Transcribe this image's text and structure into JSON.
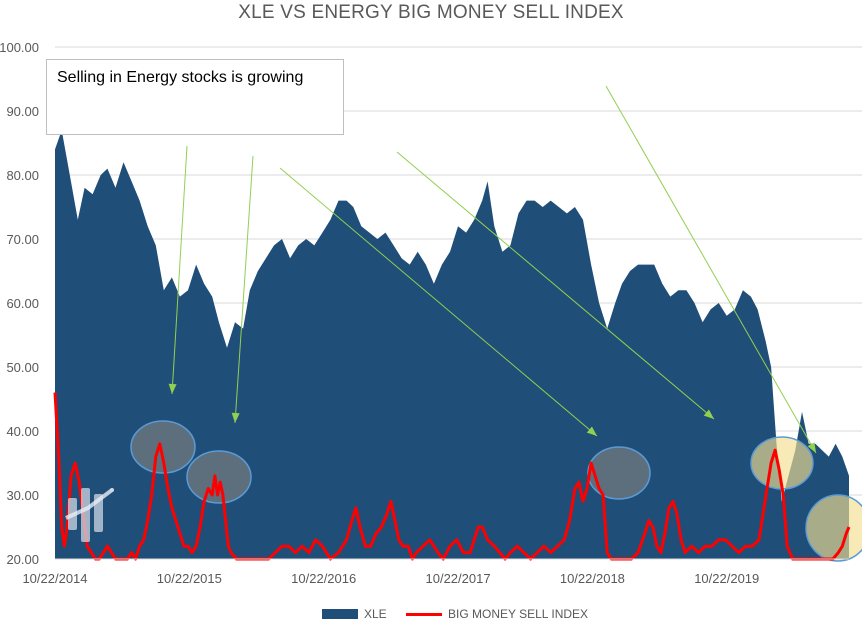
{
  "chart_data": {
    "type": "area",
    "title": "XLE VS ENERGY BIG MONEY SELL INDEX",
    "ylim": [
      20,
      100
    ],
    "yticks": [
      "20.00",
      "30.00",
      "40.00",
      "50.00",
      "60.00",
      "70.00",
      "80.00",
      "90.00",
      "100.00"
    ],
    "yvals": [
      20,
      30,
      40,
      50,
      60,
      70,
      80,
      90,
      100
    ],
    "xticks": [
      "10/22/2014",
      "10/22/2015",
      "10/22/2016",
      "10/22/2017",
      "10/22/2018",
      "10/22/2019"
    ],
    "xtick_years": [
      2014.81,
      2015.81,
      2016.81,
      2017.81,
      2018.81,
      2019.81
    ],
    "xrange": [
      2014.81,
      2020.72
    ],
    "series": [
      {
        "name": "XLE",
        "kind": "area",
        "color": "#1f4e79",
        "points": [
          [
            2014.81,
            84
          ],
          [
            2014.86,
            87
          ],
          [
            2014.92,
            80
          ],
          [
            2014.98,
            73
          ],
          [
            2015.03,
            78
          ],
          [
            2015.09,
            77
          ],
          [
            2015.15,
            80
          ],
          [
            2015.2,
            81
          ],
          [
            2015.26,
            78
          ],
          [
            2015.32,
            82
          ],
          [
            2015.38,
            79
          ],
          [
            2015.44,
            76
          ],
          [
            2015.5,
            72
          ],
          [
            2015.56,
            69
          ],
          [
            2015.62,
            62
          ],
          [
            2015.68,
            64
          ],
          [
            2015.74,
            61
          ],
          [
            2015.8,
            62
          ],
          [
            2015.86,
            66
          ],
          [
            2015.92,
            63
          ],
          [
            2015.98,
            61
          ],
          [
            2016.03,
            57
          ],
          [
            2016.09,
            53
          ],
          [
            2016.15,
            57
          ],
          [
            2016.21,
            56
          ],
          [
            2016.26,
            62
          ],
          [
            2016.32,
            65
          ],
          [
            2016.38,
            67
          ],
          [
            2016.44,
            69
          ],
          [
            2016.5,
            70
          ],
          [
            2016.56,
            67
          ],
          [
            2016.62,
            69
          ],
          [
            2016.68,
            70
          ],
          [
            2016.74,
            69
          ],
          [
            2016.8,
            71
          ],
          [
            2016.86,
            73
          ],
          [
            2016.92,
            76
          ],
          [
            2016.98,
            76
          ],
          [
            2017.03,
            75
          ],
          [
            2017.09,
            72
          ],
          [
            2017.15,
            71
          ],
          [
            2017.21,
            70
          ],
          [
            2017.27,
            71
          ],
          [
            2017.33,
            69
          ],
          [
            2017.39,
            67
          ],
          [
            2017.45,
            66
          ],
          [
            2017.51,
            68
          ],
          [
            2017.57,
            66
          ],
          [
            2017.63,
            63
          ],
          [
            2017.69,
            66
          ],
          [
            2017.75,
            68
          ],
          [
            2017.81,
            72
          ],
          [
            2017.87,
            71
          ],
          [
            2017.93,
            73
          ],
          [
            2017.99,
            76
          ],
          [
            2018.03,
            79
          ],
          [
            2018.08,
            72
          ],
          [
            2018.14,
            68
          ],
          [
            2018.2,
            69
          ],
          [
            2018.26,
            74
          ],
          [
            2018.32,
            76
          ],
          [
            2018.38,
            76
          ],
          [
            2018.44,
            75
          ],
          [
            2018.5,
            76
          ],
          [
            2018.56,
            75
          ],
          [
            2018.62,
            74
          ],
          [
            2018.68,
            75
          ],
          [
            2018.74,
            73
          ],
          [
            2018.8,
            66
          ],
          [
            2018.86,
            60
          ],
          [
            2018.92,
            56
          ],
          [
            2018.98,
            60
          ],
          [
            2019.03,
            63
          ],
          [
            2019.09,
            65
          ],
          [
            2019.15,
            66
          ],
          [
            2019.21,
            66
          ],
          [
            2019.27,
            66
          ],
          [
            2019.33,
            63
          ],
          [
            2019.39,
            61
          ],
          [
            2019.45,
            62
          ],
          [
            2019.51,
            62
          ],
          [
            2019.57,
            60
          ],
          [
            2019.63,
            57
          ],
          [
            2019.69,
            59
          ],
          [
            2019.75,
            60
          ],
          [
            2019.81,
            58
          ],
          [
            2019.87,
            59
          ],
          [
            2019.93,
            62
          ],
          [
            2019.99,
            61
          ],
          [
            2020.04,
            59
          ],
          [
            2020.1,
            54
          ],
          [
            2020.14,
            50
          ],
          [
            2020.18,
            38
          ],
          [
            2020.22,
            29
          ],
          [
            2020.27,
            33
          ],
          [
            2020.32,
            37
          ],
          [
            2020.37,
            43
          ],
          [
            2020.42,
            38
          ],
          [
            2020.47,
            38
          ],
          [
            2020.52,
            37
          ],
          [
            2020.57,
            36
          ],
          [
            2020.62,
            38
          ],
          [
            2020.67,
            36
          ],
          [
            2020.72,
            33
          ]
        ]
      },
      {
        "name": "BIG MONEY SELL INDEX",
        "kind": "line",
        "color": "#ff0000",
        "points": [
          [
            2014.81,
            46
          ],
          [
            2014.84,
            35
          ],
          [
            2014.86,
            25
          ],
          [
            2014.88,
            22
          ],
          [
            2014.9,
            25
          ],
          [
            2014.93,
            33
          ],
          [
            2014.96,
            35
          ],
          [
            2014.99,
            32
          ],
          [
            2015.02,
            27
          ],
          [
            2015.05,
            22
          ],
          [
            2015.08,
            21
          ],
          [
            2015.11,
            20
          ],
          [
            2015.14,
            20
          ],
          [
            2015.17,
            21
          ],
          [
            2015.2,
            22
          ],
          [
            2015.23,
            21
          ],
          [
            2015.26,
            20
          ],
          [
            2015.29,
            20
          ],
          [
            2015.32,
            20
          ],
          [
            2015.35,
            20
          ],
          [
            2015.38,
            21
          ],
          [
            2015.41,
            20
          ],
          [
            2015.44,
            22
          ],
          [
            2015.47,
            23
          ],
          [
            2015.5,
            26
          ],
          [
            2015.53,
            30
          ],
          [
            2015.56,
            36
          ],
          [
            2015.59,
            38
          ],
          [
            2015.62,
            35
          ],
          [
            2015.65,
            31
          ],
          [
            2015.68,
            28
          ],
          [
            2015.71,
            26
          ],
          [
            2015.74,
            24
          ],
          [
            2015.77,
            22
          ],
          [
            2015.8,
            22
          ],
          [
            2015.83,
            21
          ],
          [
            2015.86,
            22
          ],
          [
            2015.89,
            25
          ],
          [
            2015.92,
            29
          ],
          [
            2015.95,
            31
          ],
          [
            2015.98,
            30
          ],
          [
            2016.0,
            33
          ],
          [
            2016.02,
            30
          ],
          [
            2016.04,
            32
          ],
          [
            2016.06,
            30
          ],
          [
            2016.08,
            26
          ],
          [
            2016.1,
            22
          ],
          [
            2016.12,
            21
          ],
          [
            2016.16,
            20
          ],
          [
            2016.2,
            20
          ],
          [
            2016.3,
            20
          ],
          [
            2016.4,
            20
          ],
          [
            2016.45,
            21
          ],
          [
            2016.5,
            22
          ],
          [
            2016.55,
            22
          ],
          [
            2016.6,
            21
          ],
          [
            2016.65,
            22
          ],
          [
            2016.7,
            21
          ],
          [
            2016.75,
            23
          ],
          [
            2016.8,
            22
          ],
          [
            2016.86,
            20
          ],
          [
            2016.92,
            21
          ],
          [
            2016.98,
            23
          ],
          [
            2017.02,
            26
          ],
          [
            2017.05,
            28
          ],
          [
            2017.08,
            25
          ],
          [
            2017.12,
            22
          ],
          [
            2017.16,
            22
          ],
          [
            2017.2,
            24
          ],
          [
            2017.24,
            25
          ],
          [
            2017.28,
            27
          ],
          [
            2017.31,
            29
          ],
          [
            2017.34,
            26
          ],
          [
            2017.37,
            23
          ],
          [
            2017.4,
            22
          ],
          [
            2017.44,
            22
          ],
          [
            2017.47,
            20
          ],
          [
            2017.5,
            21
          ],
          [
            2017.55,
            22
          ],
          [
            2017.6,
            23
          ],
          [
            2017.63,
            22
          ],
          [
            2017.66,
            21
          ],
          [
            2017.7,
            20
          ],
          [
            2017.75,
            22
          ],
          [
            2017.8,
            23
          ],
          [
            2017.85,
            21
          ],
          [
            2017.9,
            21
          ],
          [
            2017.93,
            23
          ],
          [
            2017.96,
            25
          ],
          [
            2017.99,
            25
          ],
          [
            2018.03,
            23
          ],
          [
            2018.08,
            22
          ],
          [
            2018.12,
            21
          ],
          [
            2018.16,
            20
          ],
          [
            2018.2,
            21
          ],
          [
            2018.25,
            22
          ],
          [
            2018.3,
            21
          ],
          [
            2018.35,
            20
          ],
          [
            2018.4,
            21
          ],
          [
            2018.45,
            22
          ],
          [
            2018.5,
            21
          ],
          [
            2018.55,
            22
          ],
          [
            2018.6,
            23
          ],
          [
            2018.64,
            26
          ],
          [
            2018.68,
            31
          ],
          [
            2018.71,
            32
          ],
          [
            2018.74,
            29
          ],
          [
            2018.77,
            31
          ],
          [
            2018.8,
            35
          ],
          [
            2018.83,
            33
          ],
          [
            2018.86,
            31
          ],
          [
            2018.89,
            30
          ],
          [
            2018.92,
            21
          ],
          [
            2018.95,
            20
          ],
          [
            2019.0,
            20
          ],
          [
            2019.1,
            20
          ],
          [
            2019.15,
            21
          ],
          [
            2019.2,
            24
          ],
          [
            2019.23,
            26
          ],
          [
            2019.26,
            25
          ],
          [
            2019.29,
            22
          ],
          [
            2019.32,
            21
          ],
          [
            2019.35,
            24
          ],
          [
            2019.38,
            28
          ],
          [
            2019.41,
            29
          ],
          [
            2019.44,
            27
          ],
          [
            2019.47,
            23
          ],
          [
            2019.5,
            21
          ],
          [
            2019.55,
            22
          ],
          [
            2019.6,
            21
          ],
          [
            2019.65,
            22
          ],
          [
            2019.7,
            22
          ],
          [
            2019.75,
            23
          ],
          [
            2019.8,
            23
          ],
          [
            2019.85,
            22
          ],
          [
            2019.9,
            21
          ],
          [
            2019.95,
            22
          ],
          [
            2020.0,
            22
          ],
          [
            2020.05,
            23
          ],
          [
            2020.08,
            27
          ],
          [
            2020.11,
            31
          ],
          [
            2020.14,
            35
          ],
          [
            2020.17,
            37
          ],
          [
            2020.2,
            34
          ],
          [
            2020.23,
            30
          ],
          [
            2020.26,
            22
          ],
          [
            2020.3,
            20
          ],
          [
            2020.4,
            20
          ],
          [
            2020.5,
            20
          ],
          [
            2020.6,
            20
          ],
          [
            2020.64,
            21
          ],
          [
            2020.67,
            22
          ],
          [
            2020.7,
            24
          ],
          [
            2020.72,
            25
          ]
        ]
      }
    ],
    "annotation": "Selling in Energy stocks is growing",
    "legend_placement": "bottom",
    "grid": true
  }
}
